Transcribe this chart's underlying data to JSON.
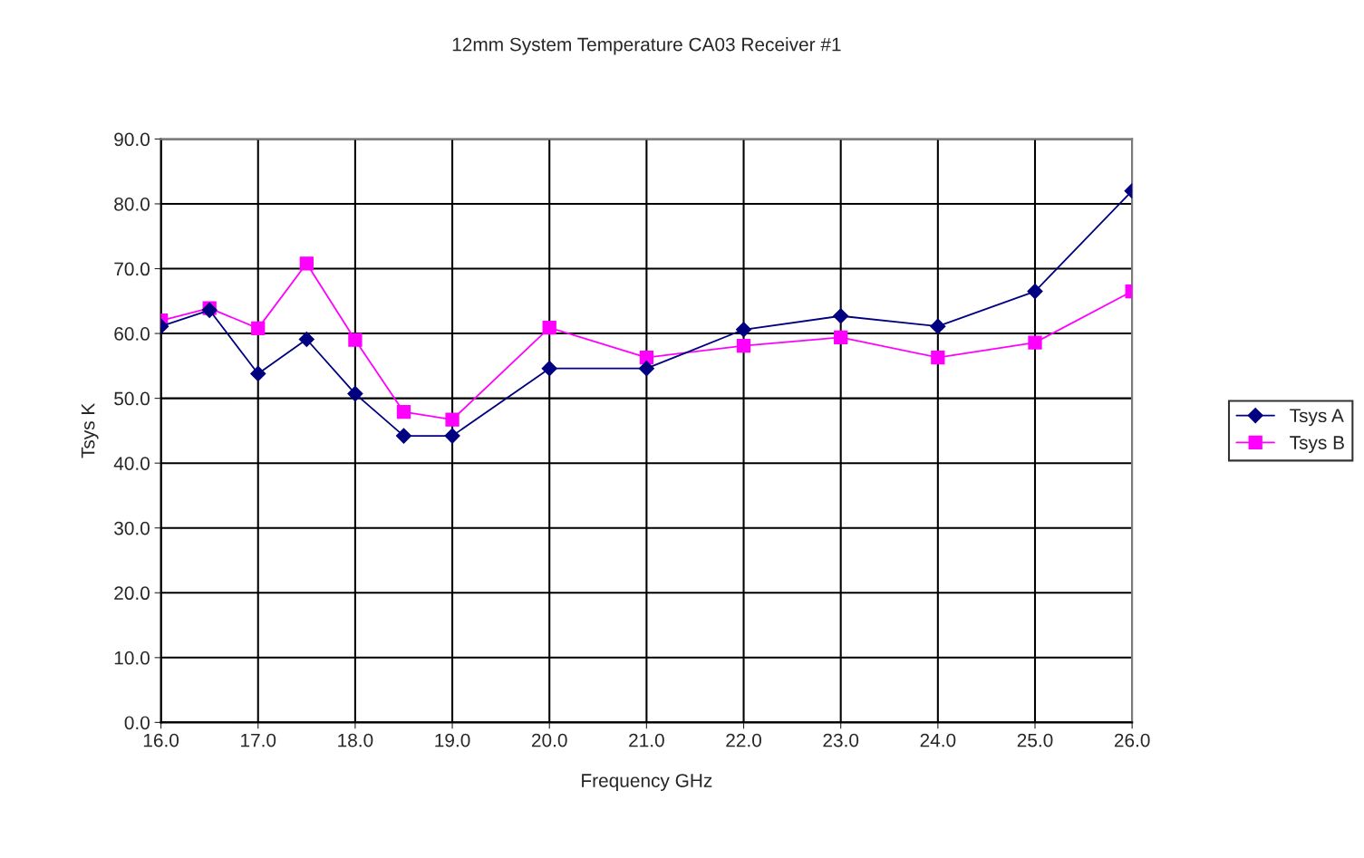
{
  "chart_data": {
    "type": "line",
    "title": "12mm System Temperature CA03 Receiver #1",
    "xlabel": "Frequency GHz",
    "ylabel": "Tsys K",
    "x": [
      16.0,
      16.5,
      17.0,
      17.5,
      18.0,
      18.5,
      19.0,
      20.0,
      21.0,
      22.0,
      23.0,
      24.0,
      25.0,
      26.0
    ],
    "series": [
      {
        "name": "Tsys A",
        "color": "#000080",
        "marker": "diamond",
        "values": [
          61.1,
          63.6,
          53.8,
          59.1,
          50.7,
          44.2,
          44.2,
          54.6,
          54.6,
          60.6,
          62.7,
          61.1,
          66.5,
          82.0
        ]
      },
      {
        "name": "Tsys B",
        "color": "#ff00ff",
        "marker": "square",
        "values": [
          62.0,
          63.9,
          60.8,
          70.8,
          59.0,
          47.9,
          46.7,
          60.9,
          56.3,
          58.1,
          59.4,
          56.3,
          58.6,
          66.5
        ]
      }
    ],
    "xlim": [
      16,
      26
    ],
    "xticks": [
      {
        "value": 16,
        "label": "16.0"
      },
      {
        "value": 17,
        "label": "17.0"
      },
      {
        "value": 18,
        "label": "18.0"
      },
      {
        "value": 19,
        "label": "19.0"
      },
      {
        "value": 20,
        "label": "20.0"
      },
      {
        "value": 21,
        "label": "21.0"
      },
      {
        "value": 22,
        "label": "22.0"
      },
      {
        "value": 23,
        "label": "23.0"
      },
      {
        "value": 24,
        "label": "24.0"
      },
      {
        "value": 25,
        "label": "25.0"
      },
      {
        "value": 26,
        "label": "26.0"
      }
    ],
    "ylim": [
      0,
      90
    ],
    "yticks": [
      {
        "value": 0,
        "label": "0.0"
      },
      {
        "value": 10,
        "label": "10.0"
      },
      {
        "value": 20,
        "label": "20.0"
      },
      {
        "value": 30,
        "label": "30.0"
      },
      {
        "value": 40,
        "label": "40.0"
      },
      {
        "value": 50,
        "label": "50.0"
      },
      {
        "value": 60,
        "label": "60.0"
      },
      {
        "value": 70,
        "label": "70.0"
      },
      {
        "value": 80,
        "label": "80.0"
      },
      {
        "value": 90,
        "label": "90.0"
      }
    ],
    "grid": true,
    "legend": "right",
    "line_style": "solid"
  }
}
